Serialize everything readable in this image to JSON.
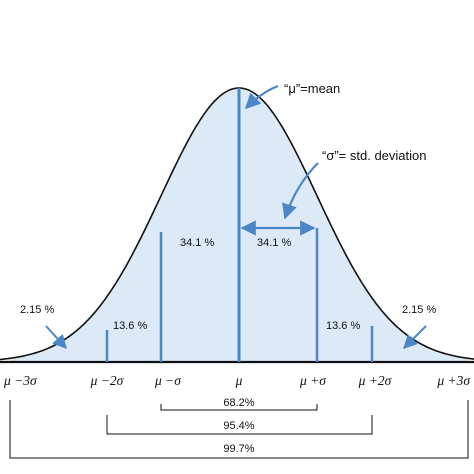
{
  "annotations": {
    "mean": "“μ”=mean",
    "sd": "“σ”= std. deviation"
  },
  "regions": {
    "left_tail": "2.15 %",
    "left_second": "13.6 %",
    "left_first": "34.1 %",
    "right_first": "34.1 %",
    "right_second": "13.6 %",
    "right_tail": "2.15 %"
  },
  "ticks": [
    "μ −3σ",
    "μ −2σ",
    "μ −σ",
    "μ",
    "μ +σ",
    "μ +2σ",
    "μ +3σ"
  ],
  "intervals": {
    "one_sd": "68.2%",
    "two_sd": "95.4%",
    "three_sd": "99.7%"
  },
  "colors": {
    "fill": "#dce9f7",
    "lines": "#4a86c8",
    "curve": "#111111"
  }
}
